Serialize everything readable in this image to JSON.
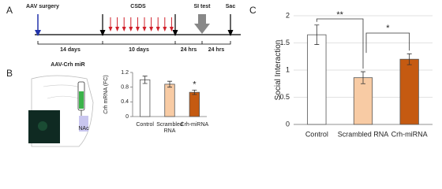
{
  "panels": [
    "A",
    "B",
    "C"
  ],
  "timeline": {
    "events": [
      "AAV surgery",
      "CSDS",
      "SI test",
      "Sac"
    ],
    "intervals": [
      "14 days",
      "10 days",
      "24 hrs",
      "24 hrs"
    ]
  },
  "schematic": {
    "title": "AAV-Crh miR",
    "region": "NAc"
  },
  "chart_data": [
    {
      "type": "bar",
      "ylabel_gene": "Crh",
      "ylabel": "mRNA (FC)",
      "categories": [
        "Control",
        "Scrambled RNA",
        "Crh-miRNA"
      ],
      "values": [
        1.0,
        0.88,
        0.66
      ],
      "errors": [
        0.1,
        0.08,
        0.06
      ],
      "colors": [
        "#ffffff",
        "#f8cba4",
        "#c55a11"
      ],
      "ylim": [
        0,
        1.2
      ],
      "yticks": [
        0,
        0.4,
        0.8,
        1.2
      ],
      "grid": false,
      "annotations": [
        "*"
      ]
    },
    {
      "type": "bar",
      "ylabel": "Social Interaction",
      "categories": [
        "Control",
        "Scrambled RNA",
        "Crh-miRNA"
      ],
      "values": [
        1.65,
        0.86,
        1.2
      ],
      "errors": [
        0.18,
        0.11,
        0.1
      ],
      "colors": [
        "#ffffff",
        "#f8cba4",
        "#c55a11"
      ],
      "ylim": [
        0,
        2
      ],
      "yticks": [
        0,
        0.5,
        1,
        1.5,
        2
      ],
      "grid": true,
      "annotations": [
        "**",
        "*"
      ]
    }
  ]
}
